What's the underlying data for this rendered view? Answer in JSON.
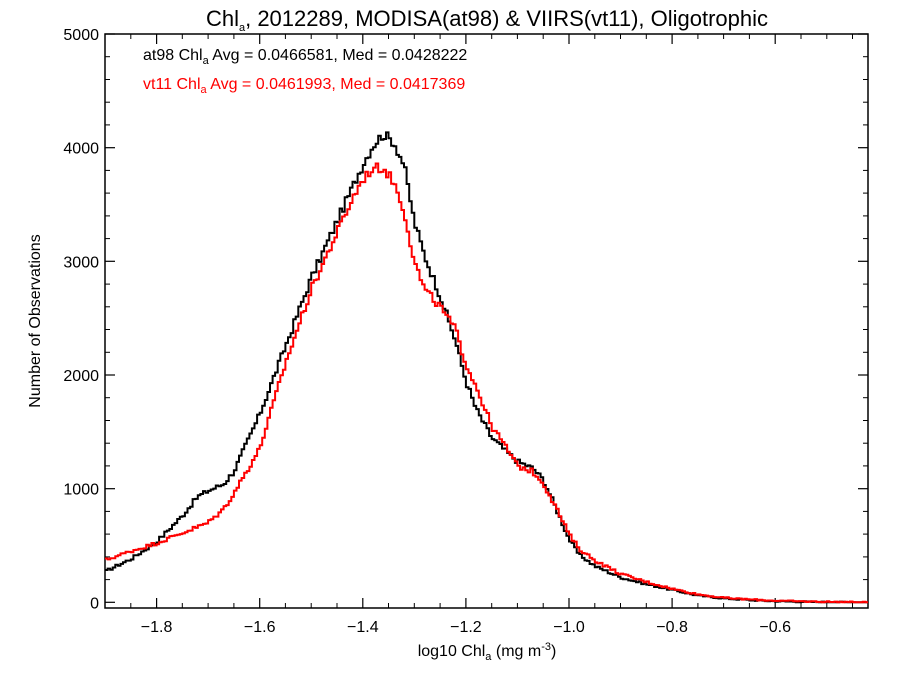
{
  "chart_data": {
    "type": "line",
    "title": {
      "pre": "Chl",
      "sub": "a",
      "post": ", 2012289, MODISA(at98) & VIIRS(vt11), Oligotrophic"
    },
    "xlabel": {
      "pre": "log10 Chl",
      "sub": "a",
      "mid": " (mg m",
      "sup": "-3",
      "post": ")"
    },
    "ylabel": "Number of Observations",
    "xlim": [
      -1.9,
      -0.42
    ],
    "ylim": [
      -50,
      5000
    ],
    "x_ticks": [
      -1.8,
      -1.6,
      -1.4,
      -1.2,
      -1.0,
      -0.8,
      -0.6
    ],
    "x_tick_labels": [
      "−1.8",
      "−1.6",
      "−1.4",
      "−1.2",
      "−1.0",
      "−0.8",
      "−0.6"
    ],
    "y_ticks": [
      0,
      1000,
      2000,
      3000,
      4000,
      5000
    ],
    "y_tick_labels": [
      "0",
      "1000",
      "2000",
      "3000",
      "4000",
      "5000"
    ],
    "grid": false,
    "annotations": [
      {
        "name": "at98-stats",
        "color": "#000000",
        "pre": "at98 Chl",
        "sub": "a",
        "post": " Avg = 0.0466581, Med = 0.0428222"
      },
      {
        "name": "vt11-stats",
        "color": "#ff0000",
        "pre": "vt11 Chl",
        "sub": "a",
        "post": " Avg = 0.0461993, Med = 0.0417369"
      }
    ],
    "series": [
      {
        "color": "#000000",
        "x": [
          -1.9,
          -1.85,
          -1.8,
          -1.75,
          -1.72,
          -1.7,
          -1.67,
          -1.65,
          -1.6,
          -1.55,
          -1.5,
          -1.45,
          -1.42,
          -1.4,
          -1.38,
          -1.36,
          -1.34,
          -1.32,
          -1.3,
          -1.28,
          -1.25,
          -1.22,
          -1.2,
          -1.18,
          -1.15,
          -1.12,
          -1.1,
          -1.07,
          -1.05,
          -1.03,
          -1.0,
          -0.98,
          -0.95,
          -0.9,
          -0.85,
          -0.8,
          -0.75,
          -0.7,
          -0.65,
          -0.6,
          -0.55,
          -0.5,
          -0.45,
          -0.42
        ],
        "y": [
          270,
          380,
          530,
          760,
          930,
          980,
          1040,
          1150,
          1650,
          2250,
          2850,
          3350,
          3650,
          3850,
          4020,
          4120,
          4050,
          3850,
          3350,
          3050,
          2700,
          2300,
          1950,
          1700,
          1450,
          1320,
          1240,
          1180,
          1080,
          880,
          560,
          420,
          320,
          220,
          160,
          110,
          60,
          35,
          20,
          10,
          5,
          2,
          1,
          0
        ]
      },
      {
        "color": "#ff0000",
        "x": [
          -1.9,
          -1.85,
          -1.8,
          -1.75,
          -1.7,
          -1.67,
          -1.65,
          -1.6,
          -1.55,
          -1.5,
          -1.45,
          -1.42,
          -1.4,
          -1.38,
          -1.36,
          -1.34,
          -1.32,
          -1.3,
          -1.28,
          -1.25,
          -1.22,
          -1.2,
          -1.18,
          -1.15,
          -1.12,
          -1.1,
          -1.07,
          -1.05,
          -1.03,
          -1.0,
          -0.98,
          -0.95,
          -0.9,
          -0.85,
          -0.8,
          -0.75,
          -0.7,
          -0.65,
          -0.6,
          -0.55,
          -0.5,
          -0.45,
          -0.42
        ],
        "y": [
          370,
          450,
          520,
          610,
          700,
          820,
          960,
          1350,
          2100,
          2750,
          3250,
          3550,
          3720,
          3820,
          3820,
          3700,
          3450,
          3000,
          2750,
          2600,
          2400,
          2100,
          1900,
          1550,
          1350,
          1200,
          1150,
          1050,
          880,
          600,
          470,
          370,
          250,
          180,
          120,
          70,
          40,
          25,
          15,
          8,
          5,
          2,
          0
        ]
      }
    ]
  }
}
